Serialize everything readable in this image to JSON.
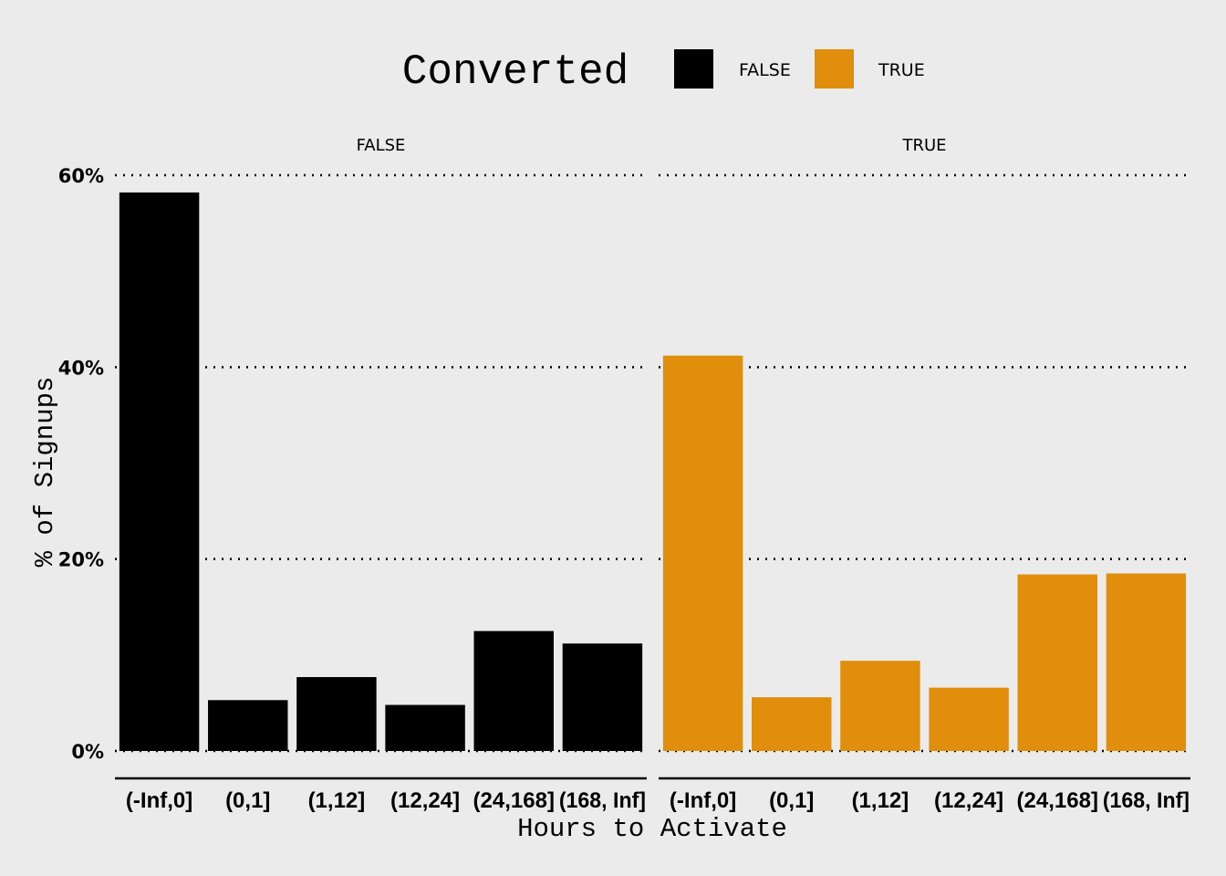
{
  "chart_data": {
    "type": "bar",
    "xlabel": "Hours to Activate",
    "ylabel": "% of Signups",
    "ylim": [
      0,
      60
    ],
    "yticks": [
      0,
      20,
      40,
      60
    ],
    "ytick_labels": [
      "0%",
      "20%",
      "40%",
      "60%"
    ],
    "grid": "horizontal dotted",
    "legend": {
      "title": "Converted",
      "placement": "top",
      "entries": [
        {
          "label": "FALSE",
          "color": "#000000"
        },
        {
          "label": "TRUE",
          "color": "#E08E0B"
        }
      ]
    },
    "categories": [
      "(-Inf,0]",
      "(0,1]",
      "(1,12]",
      "(12,24]",
      "(24,168]",
      "(168, Inf]"
    ],
    "panels": [
      {
        "label": "FALSE",
        "color": "#000000",
        "values": [
          58.2,
          5.3,
          7.7,
          4.8,
          12.5,
          11.2
        ]
      },
      {
        "label": "TRUE",
        "color": "#E08E0B",
        "values": [
          41.2,
          5.6,
          9.4,
          6.6,
          18.4,
          18.5
        ]
      }
    ]
  }
}
